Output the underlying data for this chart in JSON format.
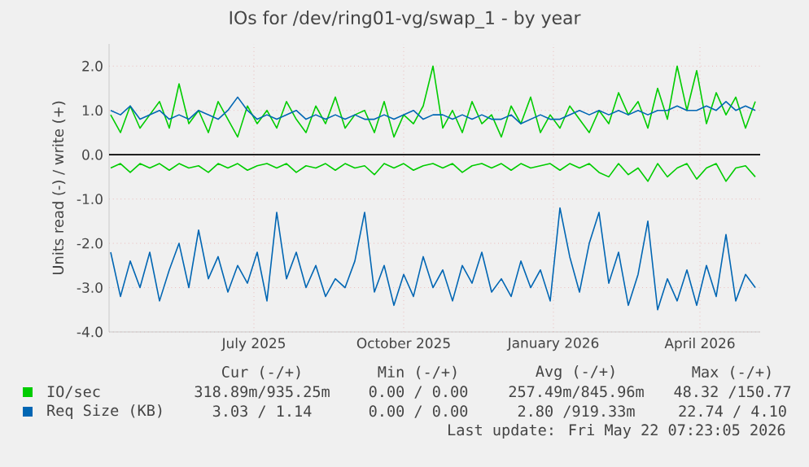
{
  "chart_data": {
    "type": "line",
    "title": "IOs for /dev/ring01-vg/swap_1 - by year",
    "ylabel": "Units read (-) / write (+)",
    "x": [
      "2025-04-18",
      "2025-04-24",
      "2025-04-30",
      "2025-05-06",
      "2025-05-12",
      "2025-05-18",
      "2025-05-24",
      "2025-05-30",
      "2025-06-05",
      "2025-06-11",
      "2025-06-17",
      "2025-06-23",
      "2025-06-29",
      "2025-07-05",
      "2025-07-11",
      "2025-07-17",
      "2025-07-23",
      "2025-07-29",
      "2025-08-04",
      "2025-08-10",
      "2025-08-16",
      "2025-08-22",
      "2025-08-28",
      "2025-09-03",
      "2025-09-09",
      "2025-09-15",
      "2025-09-21",
      "2025-09-27",
      "2025-10-03",
      "2025-10-09",
      "2025-10-15",
      "2025-10-21",
      "2025-10-27",
      "2025-11-02",
      "2025-11-08",
      "2025-11-14",
      "2025-11-20",
      "2025-11-26",
      "2025-12-02",
      "2025-12-08",
      "2025-12-14",
      "2025-12-20",
      "2025-12-26",
      "2026-01-01",
      "2026-01-07",
      "2026-01-13",
      "2026-01-19",
      "2026-01-25",
      "2026-01-31",
      "2026-02-06",
      "2026-02-12",
      "2026-02-18",
      "2026-02-24",
      "2026-03-02",
      "2026-03-08",
      "2026-03-14",
      "2026-03-20",
      "2026-03-26",
      "2026-04-01",
      "2026-04-07",
      "2026-04-13",
      "2026-04-19",
      "2026-04-25",
      "2026-05-01",
      "2026-05-07",
      "2026-05-13",
      "2026-05-19"
    ],
    "series": [
      {
        "name": "IO/sec",
        "color": "#00cc00",
        "values": [
          0.9,
          0.5,
          1.1,
          0.6,
          0.9,
          1.2,
          0.6,
          1.6,
          0.7,
          1.0,
          0.5,
          1.2,
          0.8,
          0.4,
          1.1,
          0.7,
          1.0,
          0.6,
          1.2,
          0.8,
          0.5,
          1.1,
          0.7,
          1.3,
          0.6,
          0.9,
          1.0,
          0.5,
          1.2,
          0.4,
          0.9,
          0.7,
          1.1,
          2.0,
          0.6,
          1.0,
          0.5,
          1.2,
          0.7,
          0.9,
          0.4,
          1.1,
          0.7,
          1.3,
          0.5,
          0.9,
          0.6,
          1.1,
          0.8,
          0.5,
          1.0,
          0.7,
          1.4,
          0.9,
          1.2,
          0.6,
          1.5,
          0.8,
          2.0,
          1.0,
          1.9,
          0.7,
          1.4,
          0.9,
          1.3,
          0.6,
          1.2
        ]
      },
      {
        "color": "#00cc00",
        "values": [
          -0.3,
          -0.2,
          -0.4,
          -0.2,
          -0.3,
          -0.2,
          -0.35,
          -0.2,
          -0.3,
          -0.25,
          -0.4,
          -0.2,
          -0.3,
          -0.2,
          -0.35,
          -0.25,
          -0.2,
          -0.3,
          -0.2,
          -0.4,
          -0.25,
          -0.3,
          -0.2,
          -0.35,
          -0.2,
          -0.3,
          -0.25,
          -0.45,
          -0.2,
          -0.3,
          -0.2,
          -0.35,
          -0.25,
          -0.2,
          -0.3,
          -0.2,
          -0.4,
          -0.25,
          -0.2,
          -0.3,
          -0.2,
          -0.35,
          -0.2,
          -0.3,
          -0.25,
          -0.2,
          -0.35,
          -0.2,
          -0.3,
          -0.2,
          -0.4,
          -0.5,
          -0.2,
          -0.45,
          -0.3,
          -0.6,
          -0.2,
          -0.5,
          -0.3,
          -0.2,
          -0.55,
          -0.3,
          -0.2,
          -0.6,
          -0.3,
          -0.25,
          -0.5
        ]
      },
      {
        "name": "Req Size (KB)",
        "color": "#0066b3",
        "values": [
          1.0,
          0.9,
          1.1,
          0.8,
          0.9,
          1.0,
          0.8,
          0.9,
          0.8,
          1.0,
          0.9,
          0.8,
          1.0,
          1.3,
          1.0,
          0.8,
          0.9,
          0.8,
          0.9,
          1.0,
          0.8,
          0.9,
          0.8,
          0.9,
          0.8,
          0.9,
          0.8,
          0.8,
          0.9,
          0.8,
          0.9,
          1.0,
          0.8,
          0.9,
          0.9,
          0.8,
          0.9,
          0.8,
          0.9,
          0.8,
          0.8,
          0.9,
          0.7,
          0.8,
          0.9,
          0.8,
          0.8,
          0.9,
          1.0,
          0.9,
          1.0,
          0.9,
          1.0,
          0.9,
          1.0,
          0.9,
          1.0,
          1.0,
          1.1,
          1.0,
          1.0,
          1.1,
          1.0,
          1.2,
          1.0,
          1.1,
          1.0
        ]
      },
      {
        "color": "#0066b3",
        "values": [
          -2.2,
          -3.2,
          -2.4,
          -3.0,
          -2.2,
          -3.3,
          -2.6,
          -2.0,
          -3.0,
          -1.7,
          -2.8,
          -2.3,
          -3.1,
          -2.5,
          -2.9,
          -2.2,
          -3.3,
          -1.3,
          -2.8,
          -2.2,
          -3.0,
          -2.5,
          -3.2,
          -2.8,
          -3.0,
          -2.4,
          -1.3,
          -3.1,
          -2.5,
          -3.4,
          -2.7,
          -3.2,
          -2.3,
          -3.0,
          -2.6,
          -3.3,
          -2.5,
          -2.9,
          -2.2,
          -3.1,
          -2.8,
          -3.2,
          -2.4,
          -3.0,
          -2.6,
          -3.3,
          -1.2,
          -2.3,
          -3.1,
          -2.0,
          -1.3,
          -2.9,
          -2.2,
          -3.4,
          -2.7,
          -1.5,
          -3.5,
          -2.8,
          -3.3,
          -2.6,
          -3.4,
          -2.5,
          -3.2,
          -1.8,
          -3.3,
          -2.7,
          -3.0
        ]
      }
    ],
    "xlim": [
      "2025-04-17",
      "2026-05-22"
    ],
    "xticks": [
      {
        "value": "2025-07-15",
        "label": "July 2025"
      },
      {
        "value": "2025-10-15",
        "label": "October 2025"
      },
      {
        "value": "2026-01-15",
        "label": "January 2026"
      },
      {
        "value": "2026-04-15",
        "label": "April 2026"
      }
    ],
    "ylim": [
      -4.0,
      2.5
    ],
    "yticks": [
      {
        "value": -4,
        "label": "-4.0"
      },
      {
        "value": -3,
        "label": "-3.0"
      },
      {
        "value": -2,
        "label": "-2.0"
      },
      {
        "value": -1,
        "label": "-1.0"
      },
      {
        "value": 0,
        "label": "0.0"
      },
      {
        "value": 1,
        "label": "1.0"
      },
      {
        "value": 2,
        "label": "2.0"
      }
    ],
    "ref_lines": [
      {
        "axis": "y",
        "value": 0,
        "color": "#000000"
      }
    ],
    "grid": true,
    "legend": "bottom",
    "annotations": [
      "Cur (-/+)",
      "Min (-/+)",
      "Avg (-/+)",
      "Max (-/+)",
      "318.89m/935.25m",
      "0.00 / 0.00",
      "257.49m/845.96m",
      "48.32 /150.77",
      "3.03 / 1.14",
      "0.00 / 0.00",
      "2.80 /919.33m",
      "22.74 / 4.10",
      "Last update: Fri May 22 07:23:05 2026"
    ]
  }
}
